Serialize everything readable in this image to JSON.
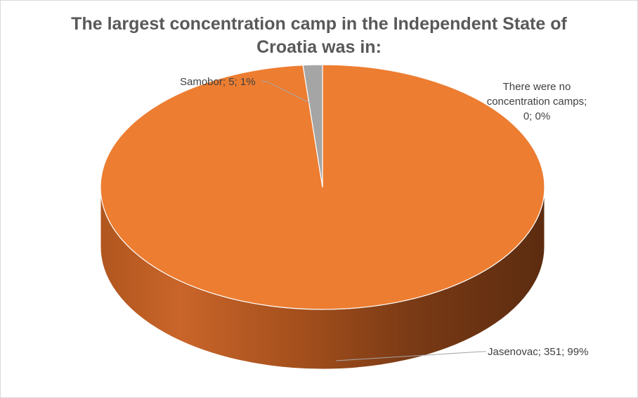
{
  "chart_data": {
    "type": "pie",
    "title_lines": [
      "The largest concentration camp in the Independent State of",
      "Croatia was in:"
    ],
    "title": "The largest concentration camp in the Independent State of Croatia was in:",
    "slices": [
      {
        "name": "Jasenovac",
        "value": 351,
        "percent": 99,
        "label": "Jasenovac; 351; 99%",
        "color": "#ed7d31"
      },
      {
        "name": "Samobor",
        "value": 5,
        "percent": 1,
        "label": "Samobor; 5; 1%",
        "color": "#a5a5a5"
      },
      {
        "name": "There were no concentration camps",
        "value": 0,
        "percent": 0,
        "label_lines": [
          "There were no",
          "concentration camps;",
          "0; 0%"
        ],
        "color": "#5b9bd5"
      }
    ],
    "style": "3d"
  }
}
